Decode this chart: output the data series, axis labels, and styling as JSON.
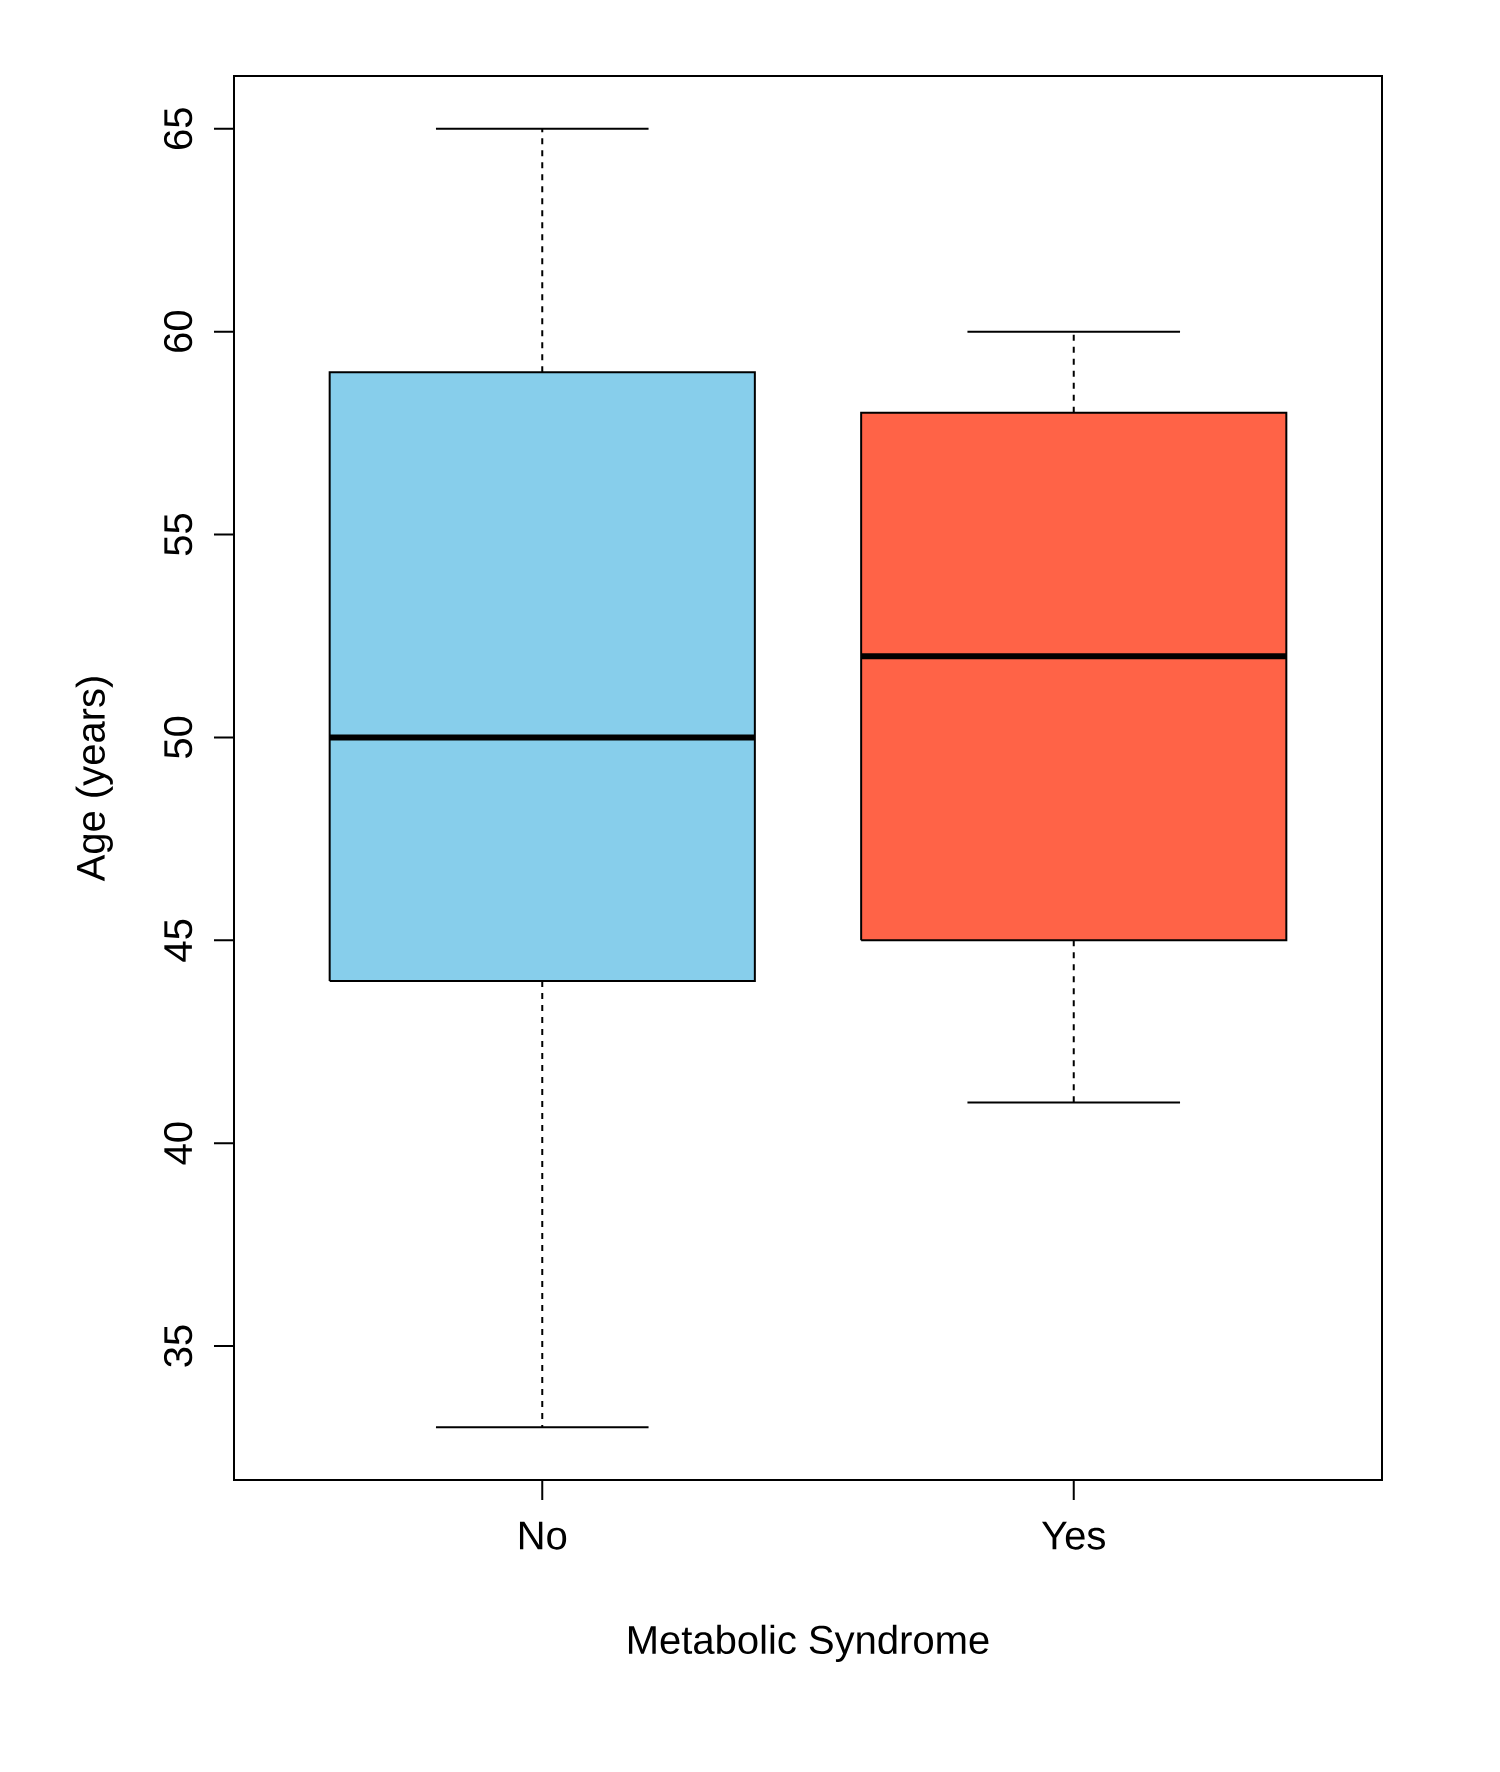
{
  "chart_data": {
    "type": "box",
    "xlabel": "Metabolic Syndrome",
    "ylabel": "Age (years)",
    "categories": [
      "No",
      "Yes"
    ],
    "colors": [
      "#87ceeb",
      "#ff6347"
    ],
    "boxes": [
      {
        "low": 33,
        "q1": 44,
        "median": 50,
        "q3": 59,
        "high": 65
      },
      {
        "low": 41,
        "q1": 45,
        "median": 52,
        "q3": 58,
        "high": 60
      }
    ],
    "ylim": [
      31.7,
      66.3
    ],
    "yticks": [
      35,
      40,
      45,
      50,
      55,
      60,
      65
    ]
  }
}
